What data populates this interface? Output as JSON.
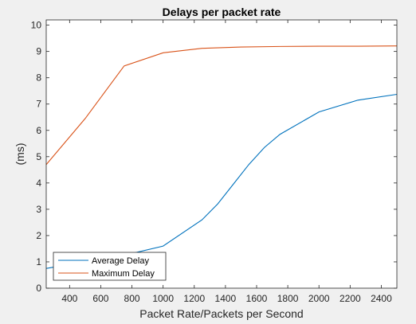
{
  "chart_data": {
    "type": "line",
    "title": "Delays per packet rate",
    "xlabel": "Packet Rate/Packets per Second",
    "ylabel": "(ms)",
    "xlim": [
      250,
      2500
    ],
    "ylim": [
      0,
      10.2
    ],
    "xticks": [
      400,
      600,
      800,
      1000,
      1200,
      1400,
      1600,
      1800,
      2000,
      2200,
      2400
    ],
    "yticks": [
      0,
      1,
      2,
      3,
      4,
      5,
      6,
      7,
      8,
      9,
      10
    ],
    "grid": false,
    "legend_position": "bottom-left",
    "series": [
      {
        "name": "Average Delay",
        "color": "#0072bd",
        "x": [
          250,
          500,
          750,
          1000,
          1250,
          1350,
          1450,
          1550,
          1650,
          1750,
          2000,
          2250,
          2500
        ],
        "y": [
          0.75,
          1.0,
          1.25,
          1.6,
          2.6,
          3.2,
          3.95,
          4.7,
          5.35,
          5.85,
          6.7,
          7.15,
          7.37
        ]
      },
      {
        "name": "Maximum Delay",
        "color": "#d95319",
        "x": [
          250,
          500,
          750,
          1000,
          1250,
          1500,
          1750,
          2000,
          2250,
          2500
        ],
        "y": [
          4.7,
          6.45,
          8.45,
          8.95,
          9.12,
          9.17,
          9.19,
          9.2,
          9.2,
          9.21
        ]
      }
    ]
  }
}
